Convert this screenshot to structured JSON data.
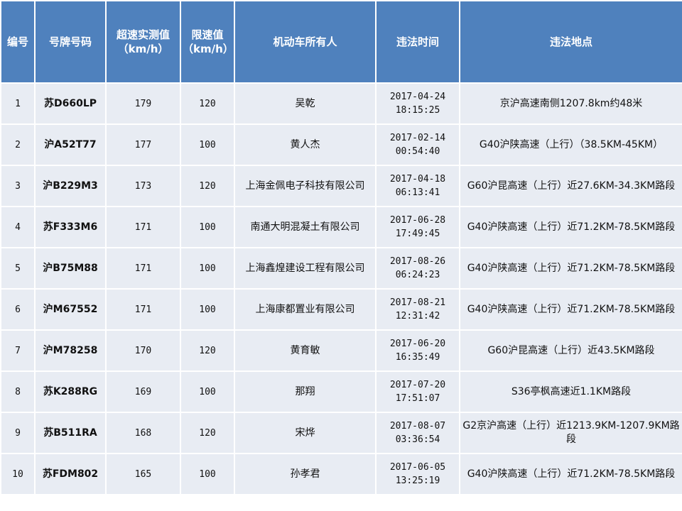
{
  "headers": [
    {
      "line1": "编号",
      "line2": ""
    },
    {
      "line1": "号牌号码",
      "line2": ""
    },
    {
      "line1": "超速实测值",
      "line2": "（km/h）"
    },
    {
      "line1": "限速值",
      "line2": "（km/h）"
    },
    {
      "line1": "机动车所有人",
      "line2": ""
    },
    {
      "line1": "违法时间",
      "line2": ""
    },
    {
      "line1": "违法地点",
      "line2": ""
    }
  ],
  "rows": [
    {
      "no": "1",
      "plate": "苏D660LP",
      "measured": "179",
      "limit": "120",
      "owner": "吴乾",
      "date": "2017-04-24",
      "time": "18:15:25",
      "location": "京沪高速南侧1207.8km约48米"
    },
    {
      "no": "2",
      "plate": "沪A52T77",
      "measured": "177",
      "limit": "100",
      "owner": "黄人杰",
      "date": "2017-02-14",
      "time": "00:54:40",
      "location": "G40沪陕高速（上行）（38.5KM-45KM）"
    },
    {
      "no": "3",
      "plate": "沪B229M3",
      "measured": "173",
      "limit": "120",
      "owner": "上海金佩电子科技有限公司",
      "date": "2017-04-18",
      "time": "06:13:41",
      "location": "G60沪昆高速（上行）近27.6KM-34.3KM路段"
    },
    {
      "no": "4",
      "plate": "苏F333M6",
      "measured": "171",
      "limit": "100",
      "owner": "南通大明混凝土有限公司",
      "date": "2017-06-28",
      "time": "17:49:45",
      "location": "G40沪陕高速（上行）近71.2KM-78.5KM路段"
    },
    {
      "no": "5",
      "plate": "沪B75M88",
      "measured": "171",
      "limit": "100",
      "owner": "上海鑫煌建设工程有限公司",
      "date": "2017-08-26",
      "time": "06:24:23",
      "location": "G40沪陕高速（上行）近71.2KM-78.5KM路段"
    },
    {
      "no": "6",
      "plate": "沪M67552",
      "measured": "171",
      "limit": "100",
      "owner": "上海康都置业有限公司",
      "date": "2017-08-21",
      "time": "12:31:42",
      "location": "G40沪陕高速（上行）近71.2KM-78.5KM路段"
    },
    {
      "no": "7",
      "plate": "沪M78258",
      "measured": "170",
      "limit": "120",
      "owner": "黄育敏",
      "date": "2017-06-20",
      "time": "16:35:49",
      "location": "G60沪昆高速（上行）近43.5KM路段"
    },
    {
      "no": "8",
      "plate": "苏K288RG",
      "measured": "169",
      "limit": "100",
      "owner": "那翔",
      "date": "2017-07-20",
      "time": "17:51:07",
      "location": "S36亭枫高速近1.1KM路段"
    },
    {
      "no": "9",
      "plate": "苏B511RA",
      "measured": "168",
      "limit": "120",
      "owner": "宋烨",
      "date": "2017-08-07",
      "time": "03:36:54",
      "location": "G2京沪高速（上行）近1213.9KM-1207.9KM路段"
    },
    {
      "no": "10",
      "plate": "苏FDM802",
      "measured": "165",
      "limit": "100",
      "owner": "孙孝君",
      "date": "2017-06-05",
      "time": "13:25:19",
      "location": "G40沪陕高速（上行）近71.2KM-78.5KM路段"
    }
  ],
  "colors": {
    "header_bg": "#4f81bd",
    "row_bg": "#e8ecf3",
    "border": "#ffffff"
  }
}
